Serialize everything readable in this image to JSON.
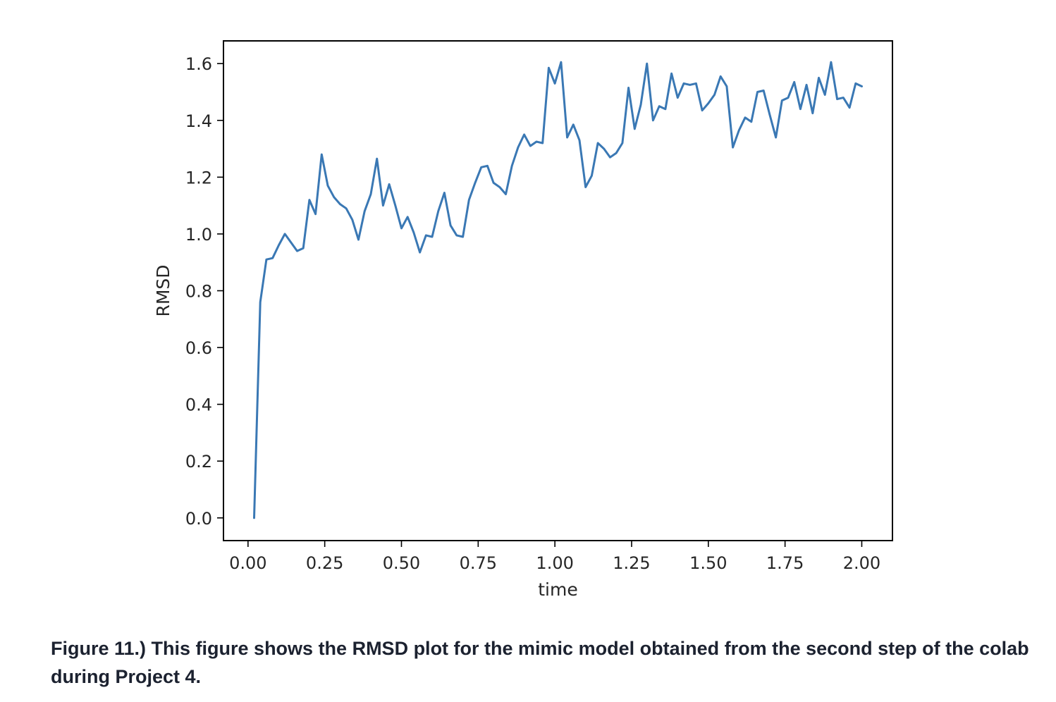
{
  "caption": "Figure 11.) This figure shows the RMSD plot for the mimic model obtained from the second step of the colab during Project 4.",
  "chart_data": {
    "type": "line",
    "xlabel": "time",
    "ylabel": "RMSD",
    "xlim": [
      -0.08,
      2.1
    ],
    "ylim": [
      -0.08,
      1.68
    ],
    "xticks": [
      "0.00",
      "0.25",
      "0.50",
      "0.75",
      "1.00",
      "1.25",
      "1.50",
      "1.75",
      "2.00"
    ],
    "yticks": [
      "0.0",
      "0.2",
      "0.4",
      "0.6",
      "0.8",
      "1.0",
      "1.2",
      "1.4",
      "1.6"
    ],
    "grid": false,
    "line_color": "#3a78b4",
    "series": [
      {
        "x": [
          0.02,
          0.04,
          0.06,
          0.08,
          0.1,
          0.12,
          0.14,
          0.16,
          0.18,
          0.2,
          0.22,
          0.24,
          0.26,
          0.28,
          0.3,
          0.32,
          0.34,
          0.36,
          0.38,
          0.4,
          0.42,
          0.44,
          0.46,
          0.48,
          0.5,
          0.52,
          0.54,
          0.56,
          0.58,
          0.6,
          0.62,
          0.64,
          0.66,
          0.68,
          0.7,
          0.72,
          0.74,
          0.76,
          0.78,
          0.8,
          0.82,
          0.84,
          0.86,
          0.88,
          0.9,
          0.92,
          0.94,
          0.96,
          0.98,
          1.0,
          1.02,
          1.04,
          1.06,
          1.08,
          1.1,
          1.12,
          1.14,
          1.16,
          1.18,
          1.2,
          1.22,
          1.24,
          1.26,
          1.28,
          1.3,
          1.32,
          1.34,
          1.36,
          1.38,
          1.4,
          1.42,
          1.44,
          1.46,
          1.48,
          1.5,
          1.52,
          1.54,
          1.56,
          1.58,
          1.6,
          1.62,
          1.64,
          1.66,
          1.68,
          1.7,
          1.72,
          1.74,
          1.76,
          1.78,
          1.8,
          1.82,
          1.84,
          1.86,
          1.88,
          1.9,
          1.92,
          1.94,
          1.96,
          1.98,
          2.0
        ],
        "values": [
          0.0,
          0.76,
          0.91,
          0.915,
          0.96,
          1.0,
          0.97,
          0.94,
          0.95,
          1.12,
          1.07,
          1.28,
          1.17,
          1.13,
          1.105,
          1.09,
          1.05,
          0.98,
          1.08,
          1.14,
          1.265,
          1.1,
          1.175,
          1.1,
          1.02,
          1.06,
          1.005,
          0.935,
          0.995,
          0.99,
          1.08,
          1.145,
          1.03,
          0.995,
          0.99,
          1.12,
          1.18,
          1.235,
          1.24,
          1.18,
          1.165,
          1.14,
          1.24,
          1.305,
          1.35,
          1.31,
          1.325,
          1.32,
          1.585,
          1.53,
          1.605,
          1.34,
          1.385,
          1.33,
          1.165,
          1.205,
          1.32,
          1.3,
          1.27,
          1.285,
          1.32,
          1.515,
          1.37,
          1.455,
          1.6,
          1.4,
          1.45,
          1.44,
          1.565,
          1.48,
          1.53,
          1.525,
          1.53,
          1.435,
          1.46,
          1.49,
          1.555,
          1.52,
          1.305,
          1.365,
          1.41,
          1.395,
          1.5,
          1.505,
          1.42,
          1.34,
          1.47,
          1.48,
          1.535,
          1.44,
          1.525,
          1.425,
          1.55,
          1.49,
          1.605,
          1.475,
          1.48,
          1.445,
          1.53,
          1.52
        ]
      }
    ]
  }
}
